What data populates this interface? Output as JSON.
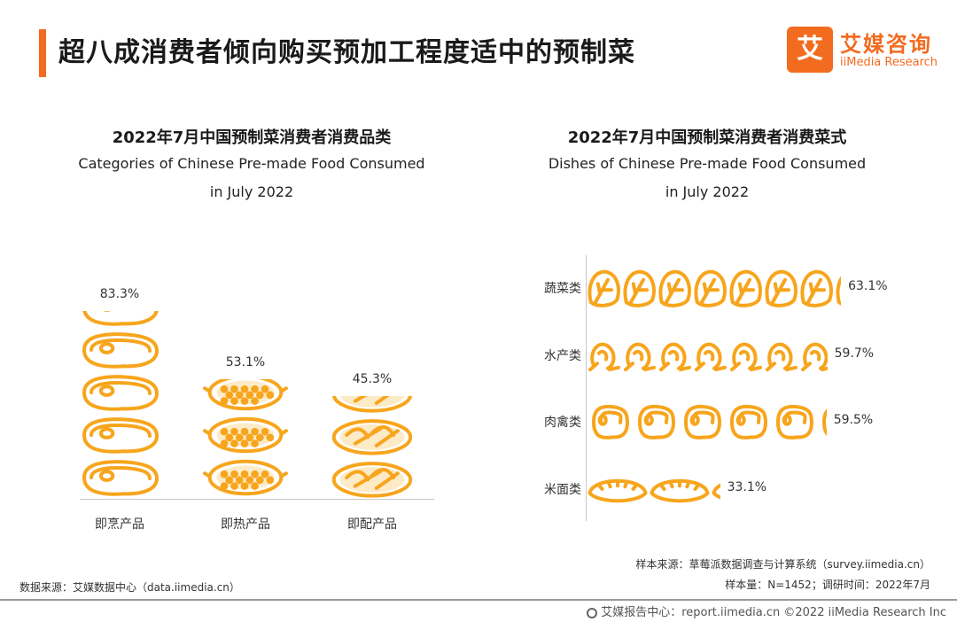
{
  "header": {
    "title": "超八成消费者倾向购买预加工程度适中的预制菜",
    "logo_cn": "艾媒咨询",
    "logo_en": "iiMedia Research",
    "logo_mark": "艾"
  },
  "colors": {
    "accent": "#F26B1F",
    "picto": "#F7A51C",
    "picto_light": "#FDEBC8"
  },
  "chart_data": [
    {
      "type": "bar",
      "title_cn": "2022年7月中国预制菜消费者消费品类",
      "title_en": "Categories of Chinese Pre-made Food Consumed",
      "subtitle_en": "in July 2022",
      "categories": [
        "即烹产品",
        "即热产品",
        "即配产品"
      ],
      "values": [
        83.3,
        53.1,
        45.3
      ],
      "value_labels": [
        "83.3%",
        "53.1%",
        "45.3%"
      ],
      "icons": [
        "steak-icon",
        "clay-pot-icon",
        "mixed-dish-icon"
      ],
      "ylim": [
        0,
        100
      ],
      "unit": "%"
    },
    {
      "type": "bar",
      "orientation": "horizontal",
      "title_cn": "2022年7月中国预制菜消费者消费菜式",
      "title_en": "Dishes of Chinese Pre-made Food Consumed",
      "subtitle_en": "in July 2022",
      "categories": [
        "蔬菜类",
        "水产类",
        "肉禽类",
        "米面类"
      ],
      "values": [
        63.1,
        59.7,
        59.5,
        33.1
      ],
      "value_labels": [
        "63.1%",
        "59.7%",
        "59.5%",
        "33.1%"
      ],
      "icons": [
        "cabbage-icon",
        "shrimp-icon",
        "steak-icon",
        "dumpling-icon"
      ],
      "xlim": [
        0,
        100
      ],
      "unit": "%"
    }
  ],
  "footer": {
    "source_left": "数据来源：艾媒数据中心（data.iimedia.cn）",
    "sample_source": "样本来源：草莓派数据调查与计算系统（survey.iimedia.cn）",
    "sample_size": "样本量：N=1452；调研时间：2022年7月",
    "credit": "艾媒报告中心：report.iimedia.cn   ©2022  iiMedia Research  Inc"
  }
}
